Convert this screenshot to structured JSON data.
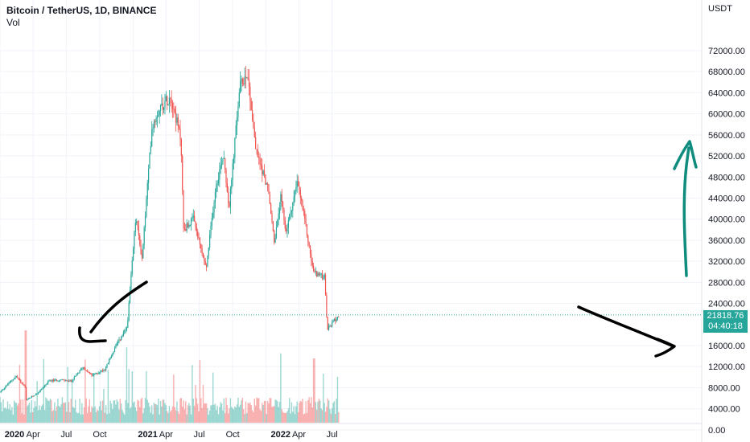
{
  "header": {
    "symbol": "Bitcoin / TetherUS, 1D, BINANCE",
    "volume_label": "Vol"
  },
  "price_axis": {
    "currency": "USDT",
    "labels": [
      "72000.00",
      "68000.00",
      "64000.00",
      "60000.00",
      "56000.00",
      "52000.00",
      "48000.00",
      "44000.00",
      "40000.00",
      "36000.00",
      "32000.00",
      "28000.00",
      "24000.00",
      "16000.00",
      "12000.00",
      "8000.00",
      "4000.00",
      "0.00"
    ],
    "last_price": "21818.76",
    "countdown": "04:40:18"
  },
  "time_axis": {
    "labels": [
      "2020",
      "Apr",
      "Jul",
      "Oct",
      "2021",
      "Apr",
      "Jul",
      "Oct",
      "2022",
      "Apr",
      "Jul"
    ]
  },
  "colors": {
    "up": "#26a69a",
    "down": "#ef5350",
    "grid": "#f0f3fa",
    "annotation_black": "#000000",
    "annotation_green": "#0f8c7e"
  },
  "chart_data": {
    "type": "candlestick",
    "title": "Bitcoin / TetherUS, 1D, BINANCE",
    "ylabel": "USDT",
    "y_ticks": [
      0,
      4000,
      8000,
      12000,
      16000,
      24000,
      28000,
      32000,
      36000,
      40000,
      44000,
      48000,
      52000,
      56000,
      60000,
      64000,
      68000,
      72000
    ],
    "x_ticks": [
      "2020",
      "Apr",
      "Jul",
      "Oct",
      "2021",
      "Apr",
      "Jul",
      "Oct",
      "2022",
      "Apr",
      "Jul"
    ],
    "price_path": {
      "dates": [
        "2020-01-01",
        "2020-02-14",
        "2020-03-12",
        "2020-03-13",
        "2020-04-15",
        "2020-05-15",
        "2020-06-15",
        "2020-07-15",
        "2020-08-15",
        "2020-09-10",
        "2020-10-15",
        "2020-11-15",
        "2020-12-15",
        "2021-01-08",
        "2021-01-25",
        "2021-02-21",
        "2021-03-13",
        "2021-04-14",
        "2021-05-12",
        "2021-05-19",
        "2021-06-15",
        "2021-07-20",
        "2021-08-15",
        "2021-09-06",
        "2021-09-21",
        "2021-10-20",
        "2021-11-10",
        "2021-12-04",
        "2022-01-05",
        "2022-01-24",
        "2022-02-10",
        "2022-02-24",
        "2022-03-28",
        "2022-04-15",
        "2022-05-09",
        "2022-05-15",
        "2022-06-10",
        "2022-06-18",
        "2022-07-10",
        "2022-07-21"
      ],
      "closes": [
        7200,
        10200,
        7900,
        5600,
        7100,
        9300,
        9500,
        9200,
        11900,
        10300,
        11500,
        16000,
        19400,
        40500,
        32500,
        57500,
        61000,
        63500,
        55000,
        38000,
        40000,
        30500,
        46000,
        52500,
        42000,
        65000,
        68000,
        53000,
        46000,
        35500,
        44000,
        37500,
        47000,
        40500,
        30500,
        29800,
        29000,
        19000,
        21000,
        21800
      ]
    },
    "last_price": 21818.76,
    "volume_ylim": [
      0,
      16000
    ]
  }
}
